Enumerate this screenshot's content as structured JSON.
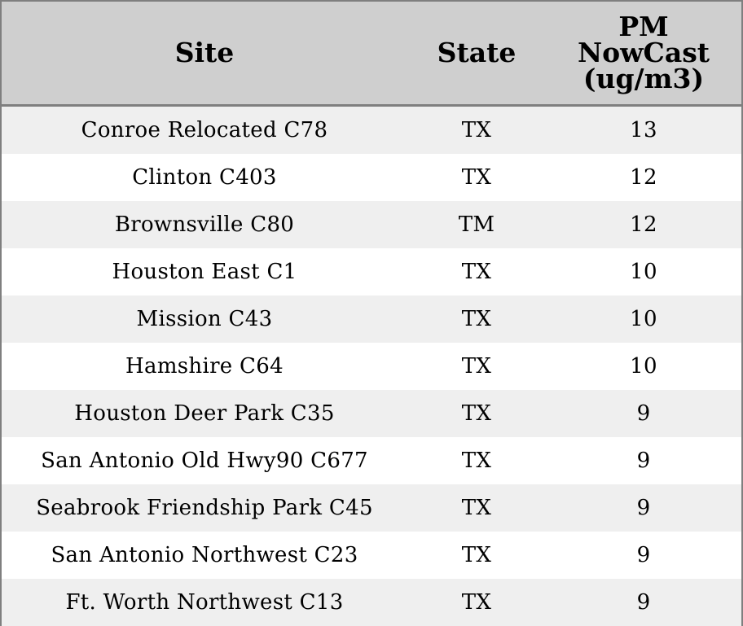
{
  "chart_data": {
    "type": "table",
    "columns": [
      "Site",
      "State",
      "PM NowCast (ug/m3)"
    ],
    "column_lines": {
      "pm": [
        "PM",
        "NowCast",
        "(ug/m3)"
      ]
    },
    "rows": [
      {
        "site": "Conroe Relocated C78",
        "state": "TX",
        "pm": "13"
      },
      {
        "site": "Clinton C403",
        "state": "TX",
        "pm": "12"
      },
      {
        "site": "Brownsville C80",
        "state": "TM",
        "pm": "12"
      },
      {
        "site": "Houston East C1",
        "state": "TX",
        "pm": "10"
      },
      {
        "site": "Mission C43",
        "state": "TX",
        "pm": "10"
      },
      {
        "site": "Hamshire C64",
        "state": "TX",
        "pm": "10"
      },
      {
        "site": "Houston Deer Park C35",
        "state": "TX",
        "pm": "9"
      },
      {
        "site": "San Antonio Old Hwy90 C677",
        "state": "TX",
        "pm": "9"
      },
      {
        "site": "Seabrook Friendship Park C45",
        "state": "TX",
        "pm": "9"
      },
      {
        "site": "San Antonio Northwest C23",
        "state": "TX",
        "pm": "9"
      },
      {
        "site": "Ft. Worth Northwest C13",
        "state": "TX",
        "pm": "9"
      }
    ],
    "header_background": "#cfcfcf",
    "stripe_color": "#efefef",
    "border_color": "#7f7f7f"
  }
}
